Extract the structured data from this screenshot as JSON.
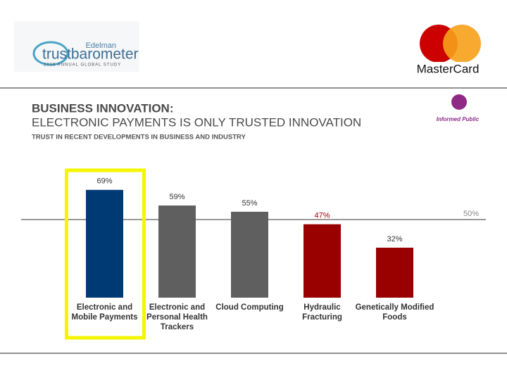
{
  "header": {
    "edelman": "Edelman",
    "trustbarometer": "trustbarometer",
    "study": "2016 ANNUAL GLOBAL STUDY",
    "brand": "MasterCard",
    "badge": "Informed Public"
  },
  "chart_data": {
    "type": "bar",
    "title": "BUSINESS INNOVATION:",
    "subtitle": "ELECTRONIC PAYMENTS IS ONLY TRUSTED INNOVATION",
    "caption": "TRUST IN RECENT DEVELOPMENTS IN BUSINESS AND INDUSTRY",
    "categories": [
      "Electronic and Mobile Payments",
      "Electronic and Personal Health Trackers",
      "Cloud Computing",
      "Hydraulic Fracturing",
      "Genetically Modified Foods"
    ],
    "values": [
      69,
      59,
      55,
      47,
      32
    ],
    "value_labels": [
      "69%",
      "59%",
      "55%",
      "47%",
      "32%"
    ],
    "colors": [
      "#003a75",
      "#5f5f5f",
      "#5f5f5f",
      "#990000",
      "#990000"
    ],
    "reference_line": {
      "value": 50,
      "label": "50%"
    },
    "highlight": 0
  }
}
